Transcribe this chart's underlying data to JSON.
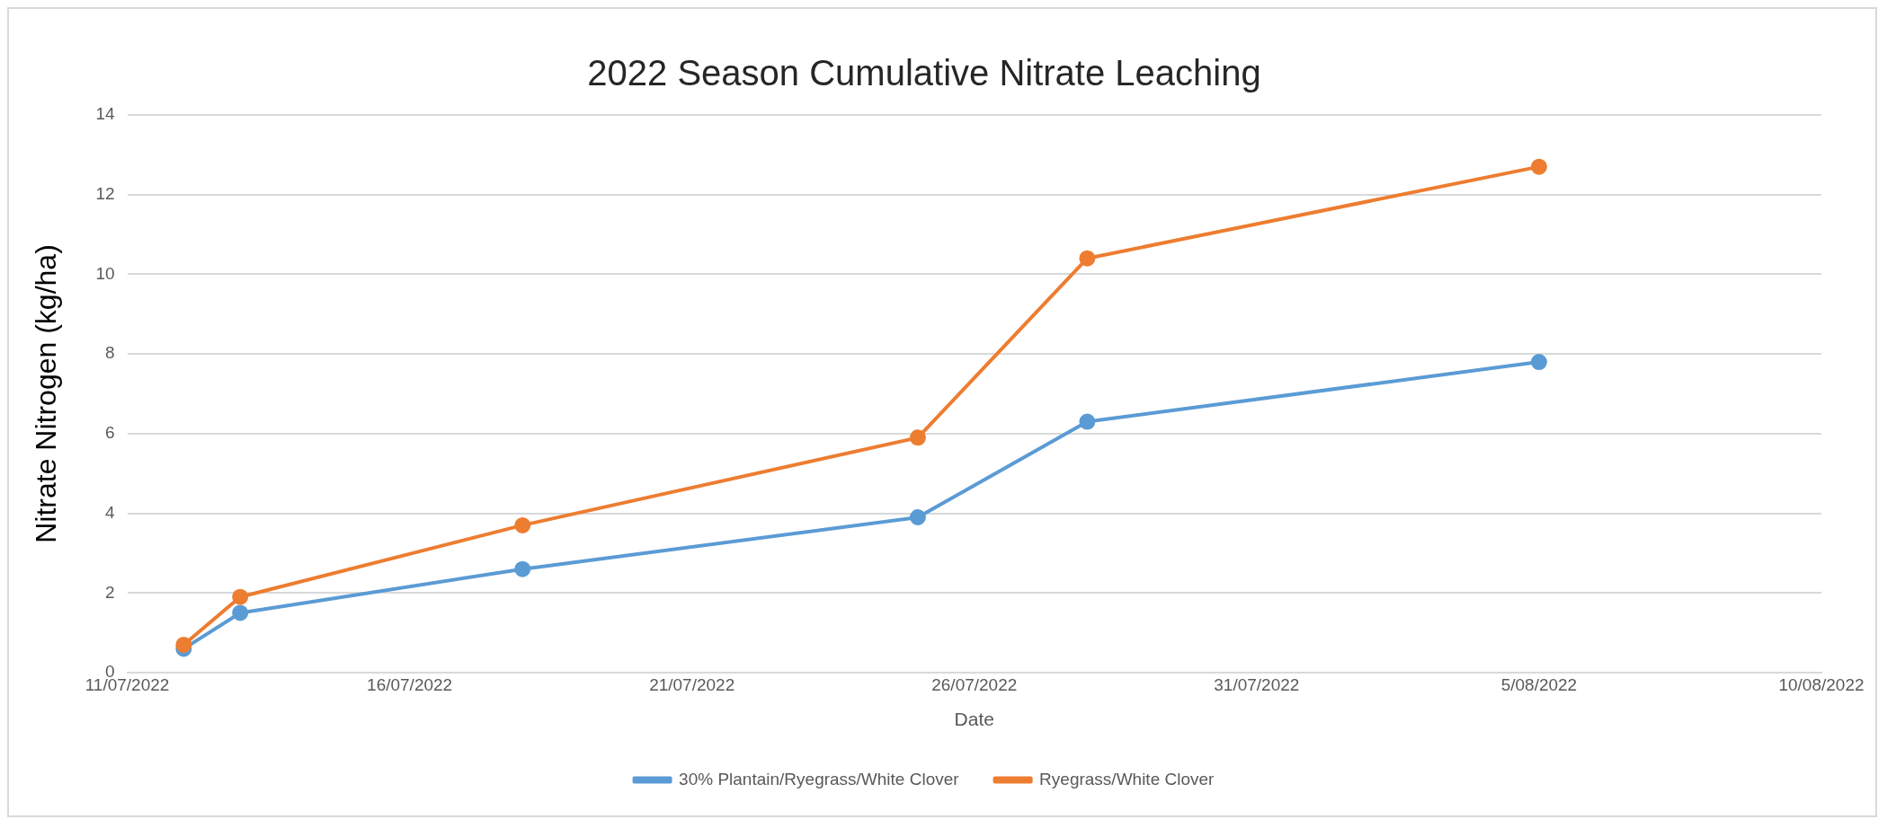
{
  "chart_data": {
    "type": "line",
    "title": "2022 Season Cumulative Nitrate Leaching",
    "xlabel": "Date",
    "ylabel": "Nitrate Nitrogen (kg/ha)",
    "x": [
      "2022-07-12",
      "2022-07-13",
      "2022-07-18",
      "2022-07-25",
      "2022-07-28",
      "2022-08-05"
    ],
    "series": [
      {
        "name": "30% Plantain/Ryegrass/White Clover",
        "color": "#5b9bd5",
        "values": [
          0.6,
          1.5,
          2.6,
          3.9,
          6.3,
          7.8
        ]
      },
      {
        "name": "Ryegrass/White Clover",
        "color": "#ed7d31",
        "values": [
          0.7,
          1.9,
          3.7,
          5.9,
          10.4,
          12.7
        ]
      }
    ],
    "xlim": [
      "2022-07-11",
      "2022-08-10"
    ],
    "xticks": [
      {
        "value": "2022-07-11",
        "label": "11/07/2022"
      },
      {
        "value": "2022-07-16",
        "label": "16/07/2022"
      },
      {
        "value": "2022-07-21",
        "label": "21/07/2022"
      },
      {
        "value": "2022-07-26",
        "label": "26/07/2022"
      },
      {
        "value": "2022-07-31",
        "label": "31/07/2022"
      },
      {
        "value": "2022-08-05",
        "label": "5/08/2022"
      },
      {
        "value": "2022-08-10",
        "label": "10/08/2022"
      }
    ],
    "ylim": [
      0,
      14
    ],
    "yticks": [
      0,
      2,
      4,
      6,
      8,
      10,
      12,
      14
    ],
    "grid": "y",
    "legend": "bottom",
    "marker": "circle",
    "line_style": "solid"
  }
}
